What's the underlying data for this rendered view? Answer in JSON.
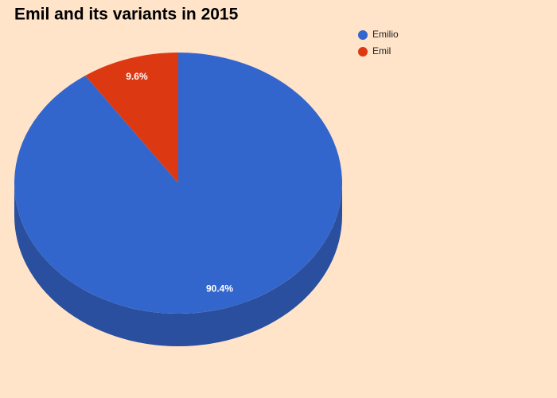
{
  "chart_data": {
    "type": "pie",
    "title": "Emil and its variants in 2015",
    "categories": [
      "Emilio",
      "Emil"
    ],
    "values": [
      90.4,
      9.6
    ],
    "value_labels": [
      "90.4%",
      "9.6%"
    ],
    "colors": [
      "#3366cc",
      "#dc3912"
    ],
    "side_colors": [
      "#2a4f9e",
      "#a82b0e"
    ],
    "legend": "top-right"
  }
}
